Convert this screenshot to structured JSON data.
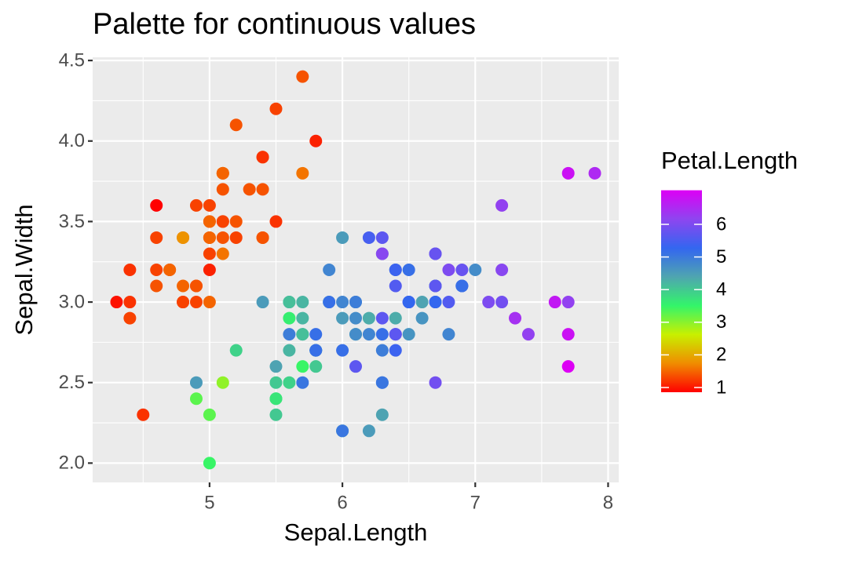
{
  "chart_data": {
    "type": "scatter",
    "title": "Palette for continuous values",
    "x_label": "Sepal.Length",
    "y_label": "Sepal.Width",
    "xlim": [
      4.12,
      8.08
    ],
    "ylim": [
      1.88,
      4.52
    ],
    "xticks": [
      5,
      6,
      7,
      8
    ],
    "yticks": [
      {
        "value": 2.0,
        "label": "2.0"
      },
      {
        "value": 2.5,
        "label": "2.5"
      },
      {
        "value": 3.0,
        "label": "3.0"
      },
      {
        "value": 3.5,
        "label": "3.5"
      },
      {
        "value": 4.0,
        "label": "4.0"
      },
      {
        "value": 4.5,
        "label": "4.5"
      }
    ],
    "grid": true,
    "minor_grid": true,
    "x": [
      5.1,
      4.9,
      4.7,
      4.6,
      5.0,
      5.4,
      4.6,
      5.0,
      4.4,
      4.9,
      5.4,
      4.8,
      4.8,
      4.3,
      5.8,
      5.7,
      5.4,
      5.1,
      5.7,
      5.1,
      5.4,
      5.1,
      4.6,
      5.1,
      4.8,
      5.0,
      5.0,
      5.2,
      5.2,
      4.7,
      4.8,
      5.4,
      5.2,
      5.5,
      4.9,
      5.0,
      5.5,
      4.9,
      4.4,
      5.1,
      5.0,
      4.5,
      4.4,
      5.0,
      5.1,
      4.8,
      5.1,
      4.6,
      5.3,
      5.0,
      7.0,
      6.4,
      6.9,
      5.5,
      6.5,
      5.7,
      6.3,
      4.9,
      6.6,
      5.2,
      5.0,
      5.9,
      6.0,
      6.1,
      5.6,
      6.7,
      5.6,
      5.8,
      6.2,
      5.6,
      5.9,
      6.1,
      6.3,
      6.1,
      6.4,
      6.6,
      6.8,
      6.7,
      6.0,
      5.7,
      5.5,
      5.5,
      5.8,
      6.0,
      5.4,
      6.0,
      6.7,
      6.3,
      5.6,
      5.5,
      5.5,
      6.1,
      5.8,
      5.0,
      5.6,
      5.7,
      5.7,
      6.2,
      5.1,
      5.7,
      6.3,
      5.8,
      7.1,
      6.3,
      6.5,
      7.6,
      4.9,
      7.3,
      6.7,
      7.2,
      6.5,
      6.4,
      6.8,
      5.7,
      5.8,
      6.4,
      6.5,
      7.7,
      7.7,
      6.0,
      6.9,
      5.6,
      7.7,
      6.3,
      6.7,
      7.2,
      6.2,
      6.1,
      6.4,
      7.2,
      7.4,
      7.9,
      6.4,
      6.3,
      6.1,
      7.7,
      6.3,
      6.4,
      6.0,
      6.9,
      6.7,
      6.9,
      5.8,
      6.8,
      6.7,
      6.7,
      6.3,
      6.5,
      6.2,
      5.9
    ],
    "y": [
      3.5,
      3.0,
      3.2,
      3.1,
      3.6,
      3.9,
      3.4,
      3.4,
      2.9,
      3.1,
      3.7,
      3.4,
      3.0,
      3.0,
      4.0,
      4.4,
      3.9,
      3.5,
      3.8,
      3.8,
      3.4,
      3.7,
      3.6,
      3.3,
      3.4,
      3.0,
      3.4,
      3.5,
      3.4,
      3.2,
      3.1,
      3.4,
      4.1,
      4.2,
      3.1,
      3.2,
      3.5,
      3.6,
      3.0,
      3.4,
      3.5,
      2.3,
      3.2,
      3.5,
      3.8,
      3.0,
      3.8,
      3.2,
      3.7,
      3.3,
      3.2,
      3.2,
      3.1,
      2.3,
      2.8,
      2.8,
      3.3,
      2.4,
      2.9,
      2.7,
      2.0,
      3.0,
      2.2,
      2.9,
      2.9,
      3.1,
      3.0,
      2.7,
      2.2,
      2.5,
      3.2,
      2.8,
      2.5,
      2.8,
      2.9,
      3.0,
      2.8,
      3.0,
      2.9,
      2.6,
      2.4,
      2.4,
      2.7,
      2.7,
      3.0,
      3.4,
      3.1,
      2.3,
      3.0,
      2.5,
      2.6,
      3.0,
      2.6,
      2.3,
      2.7,
      3.0,
      2.9,
      2.9,
      2.5,
      2.8,
      3.3,
      2.7,
      3.0,
      2.9,
      3.0,
      3.0,
      2.5,
      2.9,
      2.5,
      3.6,
      3.2,
      2.7,
      3.0,
      2.5,
      2.8,
      3.2,
      3.0,
      3.8,
      2.6,
      2.2,
      3.2,
      2.8,
      2.8,
      2.7,
      3.3,
      3.2,
      2.8,
      3.0,
      2.8,
      3.0,
      2.8,
      3.8,
      2.8,
      2.8,
      2.6,
      3.0,
      3.4,
      3.1,
      3.0,
      3.1,
      3.1,
      3.1,
      2.7,
      3.2,
      3.3,
      3.0,
      2.5,
      3.0,
      3.4,
      3.0
    ],
    "color_values": [
      1.4,
      1.4,
      1.3,
      1.5,
      1.4,
      1.7,
      1.4,
      1.5,
      1.4,
      1.5,
      1.5,
      1.6,
      1.4,
      1.1,
      1.2,
      1.5,
      1.3,
      1.4,
      1.7,
      1.5,
      1.7,
      1.5,
      1.0,
      1.7,
      1.9,
      1.6,
      1.6,
      1.5,
      1.4,
      1.6,
      1.6,
      1.5,
      1.5,
      1.4,
      1.5,
      1.2,
      1.3,
      1.4,
      1.3,
      1.5,
      1.3,
      1.3,
      1.3,
      1.6,
      1.9,
      1.4,
      1.6,
      1.4,
      1.5,
      1.4,
      4.7,
      4.5,
      4.9,
      4.0,
      4.6,
      4.5,
      4.7,
      3.3,
      4.6,
      3.9,
      3.5,
      4.2,
      4.0,
      4.7,
      3.6,
      4.4,
      4.5,
      4.1,
      4.5,
      3.9,
      4.8,
      4.0,
      4.9,
      4.7,
      4.3,
      4.4,
      4.8,
      5.0,
      4.5,
      3.5,
      3.8,
      3.7,
      3.9,
      5.1,
      4.5,
      4.5,
      4.7,
      4.4,
      4.1,
      4.0,
      4.4,
      4.6,
      4.0,
      3.3,
      4.2,
      4.2,
      4.2,
      4.3,
      3.0,
      4.1,
      6.0,
      5.1,
      5.9,
      5.6,
      5.8,
      6.6,
      4.5,
      6.3,
      5.8,
      6.1,
      5.1,
      5.3,
      5.5,
      5.0,
      5.1,
      5.3,
      5.5,
      6.7,
      6.9,
      5.0,
      5.7,
      4.9,
      6.7,
      4.9,
      5.7,
      6.0,
      4.8,
      4.9,
      5.6,
      5.8,
      6.1,
      6.4,
      5.6,
      5.1,
      5.6,
      6.1,
      5.6,
      5.5,
      4.8,
      5.4,
      5.6,
      5.1,
      5.1,
      5.9,
      5.7,
      5.2,
      5.0,
      5.2,
      5.4,
      5.1
    ],
    "color_title": "Petal.Length",
    "color_lim": [
      1.0,
      6.9
    ],
    "color_ticks": [
      1,
      2,
      3,
      4,
      5,
      6
    ],
    "palette": [
      "#FF0000",
      "#F08C00",
      "#C8F000",
      "#33F56A",
      "#4FA5B0",
      "#3366F0",
      "#8E45F0",
      "#DD00F5"
    ]
  }
}
